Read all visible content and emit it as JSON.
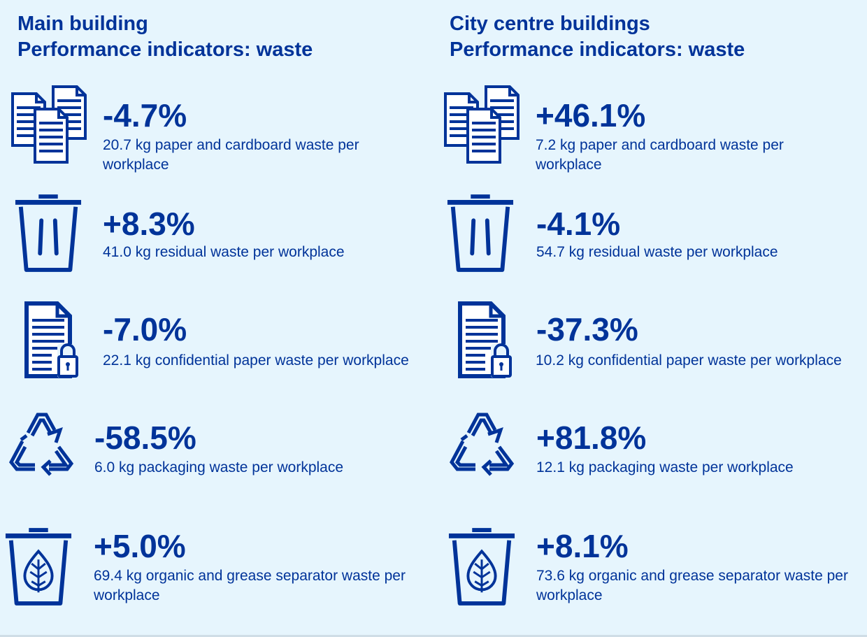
{
  "colors": {
    "background": "#e6f5fd",
    "primary": "#003399"
  },
  "left": {
    "title_line1": "Main building",
    "title_line2": "Performance indicators: waste",
    "items": [
      {
        "icon": "paper-stack-icon",
        "change": "-4.7%",
        "description": "20.7 kg paper and cardboard waste per workplace"
      },
      {
        "icon": "trash-bin-icon",
        "change": "+8.3%",
        "description": "41.0 kg residual waste per workplace"
      },
      {
        "icon": "locked-document-icon",
        "change": "-7.0%",
        "description": "22.1 kg confidential paper waste per workplace"
      },
      {
        "icon": "recycle-icon",
        "change": "-58.5%",
        "description": "6.0 kg packaging waste per workplace"
      },
      {
        "icon": "organic-bin-icon",
        "change": "+5.0%",
        "description": "69.4 kg organic and grease separator waste per workplace"
      }
    ]
  },
  "right": {
    "title_line1": "City centre buildings",
    "title_line2": "Performance indicators: waste",
    "items": [
      {
        "icon": "paper-stack-icon",
        "change": "+46.1%",
        "description": "7.2 kg paper and cardboard waste per workplace"
      },
      {
        "icon": "trash-bin-icon",
        "change": "-4.1%",
        "description": "54.7 kg residual waste per workplace"
      },
      {
        "icon": "locked-document-icon",
        "change": "-37.3%",
        "description": "10.2 kg confidential paper waste per workplace"
      },
      {
        "icon": "recycle-icon",
        "change": "+81.8%",
        "description": "12.1 kg packaging waste per workplace"
      },
      {
        "icon": "organic-bin-icon",
        "change": "+8.1%",
        "description": "73.6 kg organic and grease separator waste per workplace"
      }
    ]
  }
}
